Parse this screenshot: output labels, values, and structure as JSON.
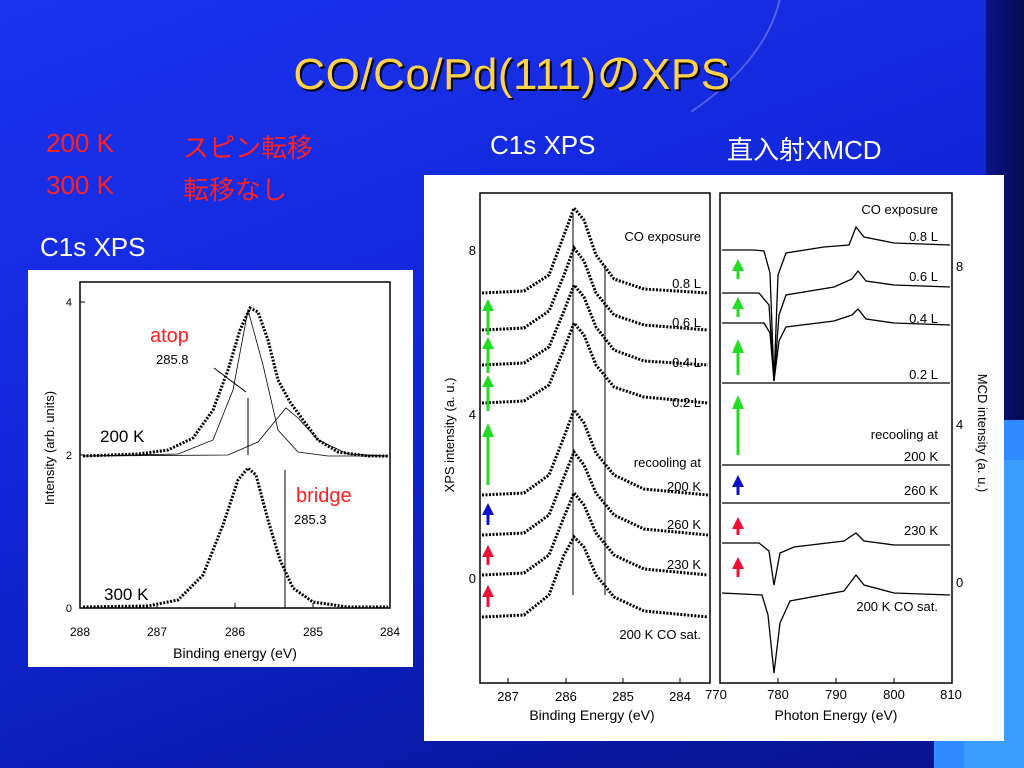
{
  "slide": {
    "title": "CO/Co/Pd(111)のXPS",
    "notes": [
      {
        "temp": "200 K",
        "text": "スピン転移"
      },
      {
        "temp": "300 K",
        "text": "転移なし"
      }
    ],
    "left_caption": "C1s XPS",
    "right_caption_xps": "C1s XPS",
    "right_caption_xmcd": "直入射XMCD"
  },
  "left_plot": {
    "ylabel": "Intensity (arb. units)",
    "xlabel": "Binding energy (eV)",
    "xticks": [
      "288",
      "287",
      "286",
      "285",
      "284"
    ],
    "yticks": [
      "4",
      "2",
      "0"
    ],
    "labels": {
      "t200": "200 K",
      "t300": "300 K",
      "atop": "atop",
      "atop_val": "285.8",
      "bridge": "bridge",
      "bridge_val": "285.3"
    }
  },
  "xps_panel": {
    "ylabel": "XPS intensity (a. u.)",
    "xlabel": "Binding Energy (eV)",
    "xticks": [
      "287",
      "286",
      "285",
      "284"
    ],
    "yticks": [
      "8",
      "4",
      "0"
    ],
    "labels": [
      "CO exposure",
      "0.8 L",
      "0.6 L",
      "0.4 L",
      "0.2 L",
      "recooling at",
      "200 K",
      "260 K",
      "230 K",
      "200 K CO sat."
    ]
  },
  "xmcd_panel": {
    "ylabel": "MCD intensity (a. u.)",
    "xlabel": "Photon Energy (eV)",
    "xticks": [
      "770",
      "780",
      "790",
      "800",
      "810"
    ],
    "yticks": [
      "8",
      "4",
      "0"
    ],
    "labels": [
      "CO exposure",
      "0.8 L",
      "0.6 L",
      "0.4 L",
      "0.2 L",
      "recooling at",
      "200 K",
      "260 K",
      "230 K",
      "200 K CO sat."
    ]
  },
  "colors": {
    "title": "#ffd24a",
    "note": "#ff2020",
    "arrow_green": "#22dd22",
    "arrow_blue": "#1010cc",
    "arrow_red": "#ee1133"
  }
}
